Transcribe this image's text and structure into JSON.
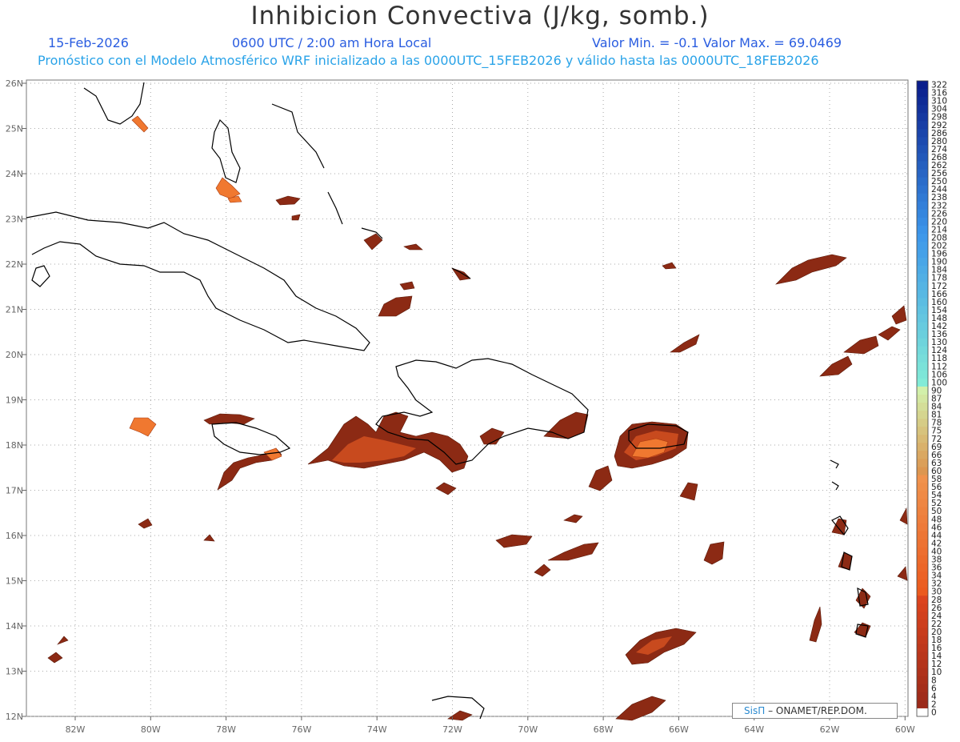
{
  "title": "Inhibicion Convectiva (J/kg, somb.)",
  "date": "15-Feb-2026",
  "time": "0600 UTC / 2:00 am Hora Local",
  "min_max": "Valor Min. = -0.1  Valor Max. = 69.0469",
  "forecast_line": "Pronóstico con el Modelo Atmosférico WRF inicializado a las 0000UTC_15FEB2026 y válido hasta las  0000UTC_18FEB2026",
  "credit": {
    "brand": "SisΠ",
    "text": "– ONAMET/REP.DOM."
  },
  "axes": {
    "lon_labels": [
      "82W",
      "80W",
      "78W",
      "76W",
      "74W",
      "72W",
      "70W",
      "68W",
      "66W",
      "64W",
      "62W",
      "60W"
    ],
    "lat_labels": [
      "26N",
      "25N",
      "24N",
      "23N",
      "22N",
      "21N",
      "20N",
      "19N",
      "18N",
      "17N",
      "16N",
      "15N",
      "14N",
      "13N",
      "12N"
    ]
  },
  "colorbar": {
    "labels": [
      "322",
      "316",
      "310",
      "304",
      "298",
      "292",
      "286",
      "280",
      "274",
      "268",
      "262",
      "256",
      "250",
      "244",
      "238",
      "232",
      "226",
      "220",
      "214",
      "208",
      "202",
      "196",
      "190",
      "184",
      "178",
      "172",
      "166",
      "160",
      "154",
      "148",
      "142",
      "136",
      "130",
      "124",
      "118",
      "112",
      "106",
      "100",
      "90",
      "87",
      "84",
      "81",
      "78",
      "75",
      "72",
      "69",
      "66",
      "63",
      "60",
      "58",
      "56",
      "54",
      "52",
      "50",
      "48",
      "46",
      "44",
      "42",
      "40",
      "38",
      "36",
      "34",
      "32",
      "30",
      "28",
      "26",
      "24",
      "22",
      "20",
      "18",
      "16",
      "14",
      "12",
      "10",
      "8",
      "6",
      "4",
      "2",
      "0"
    ]
  },
  "colors": {
    "ocean": "#ffffff",
    "coast": "#000000",
    "grid": "#aaaaaa",
    "low_cin": "#8c2a14",
    "mid_cin": "#c84a1e",
    "high_cin": "#f07830"
  }
}
